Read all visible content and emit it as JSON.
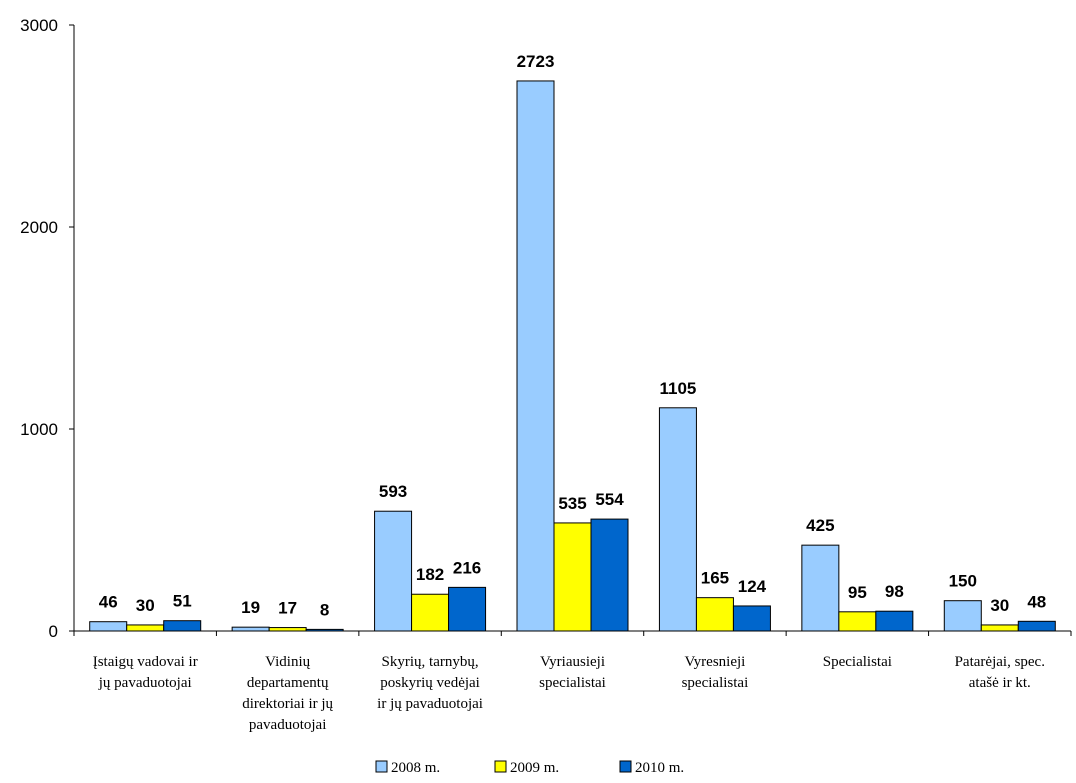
{
  "chart_data": {
    "type": "bar",
    "title": "",
    "xlabel": "",
    "ylabel": "",
    "ylim": [
      0,
      3000
    ],
    "yticks": [
      0,
      1000,
      2000,
      3000
    ],
    "grid": false,
    "legend_position": "bottom",
    "categories": [
      [
        "Įstaigų vadovai ir",
        "jų pavaduotojai"
      ],
      [
        "Vidinių",
        "departamentų",
        "direktoriai ir jų",
        "pavaduotojai"
      ],
      [
        "Skyrių, tarnybų,",
        "poskyrių vedėjai",
        "ir jų pavaduotojai"
      ],
      [
        "Vyriausieji",
        "specialistai"
      ],
      [
        "Vyresnieji",
        "specialistai"
      ],
      [
        "Specialistai"
      ],
      [
        "Patarėjai, spec.",
        "atašė ir kt."
      ]
    ],
    "series": [
      {
        "name": "2008 m.",
        "color": "#99ccff",
        "values": [
          46,
          19,
          593,
          2723,
          1105,
          425,
          150
        ]
      },
      {
        "name": "2009 m.",
        "color": "#ffff00",
        "values": [
          30,
          17,
          182,
          535,
          165,
          95,
          30
        ]
      },
      {
        "name": "2010 m.",
        "color": "#0066cc",
        "values": [
          51,
          8,
          216,
          554,
          124,
          98,
          48
        ]
      }
    ]
  }
}
